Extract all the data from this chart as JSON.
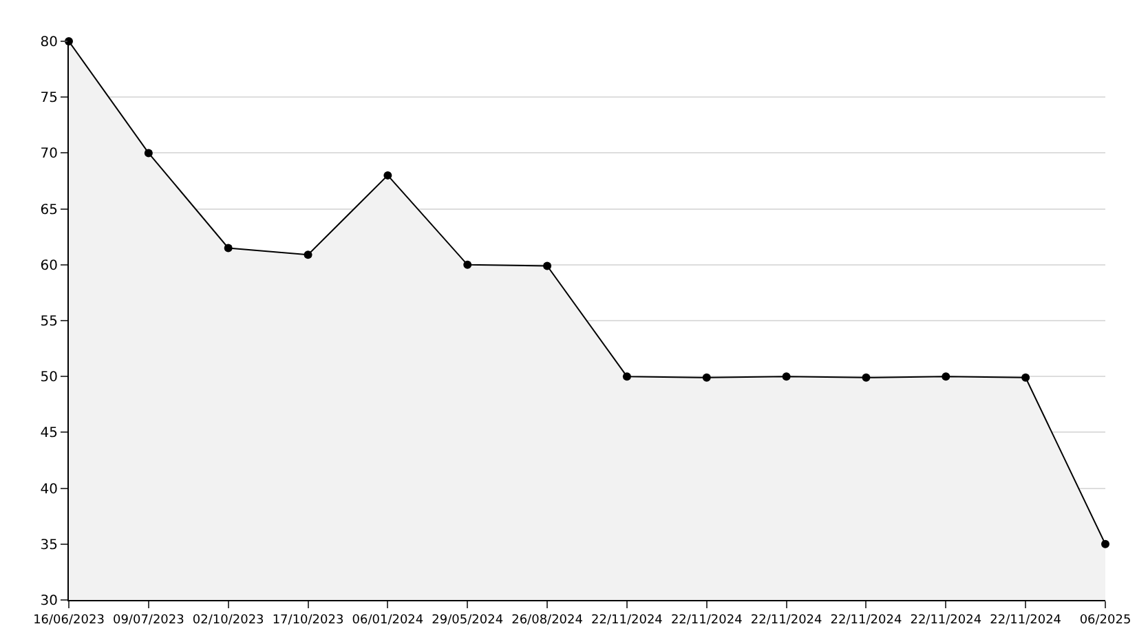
{
  "chart_data": {
    "type": "area",
    "categories": [
      "16/06/2023",
      "09/07/2023",
      "02/10/2023",
      "17/10/2023",
      "06/01/2024",
      "29/05/2024",
      "26/08/2024",
      "22/11/2024",
      "22/11/2024",
      "22/11/2024",
      "22/11/2024",
      "22/11/2024",
      "22/11/2024",
      "06/2025"
    ],
    "series": [
      {
        "color": "#000000",
        "values": [
          80,
          70,
          61.5,
          60.9,
          68,
          60,
          59.9,
          50,
          49.9,
          50,
          49.9,
          50,
          49.9,
          35
        ]
      }
    ],
    "ylim": [
      30,
      80
    ],
    "yticks": [
      30,
      35,
      40,
      45,
      50,
      55,
      60,
      65,
      70,
      75,
      80
    ],
    "grid": "y",
    "marker": "circle",
    "line_style": "solid",
    "legend": false
  }
}
